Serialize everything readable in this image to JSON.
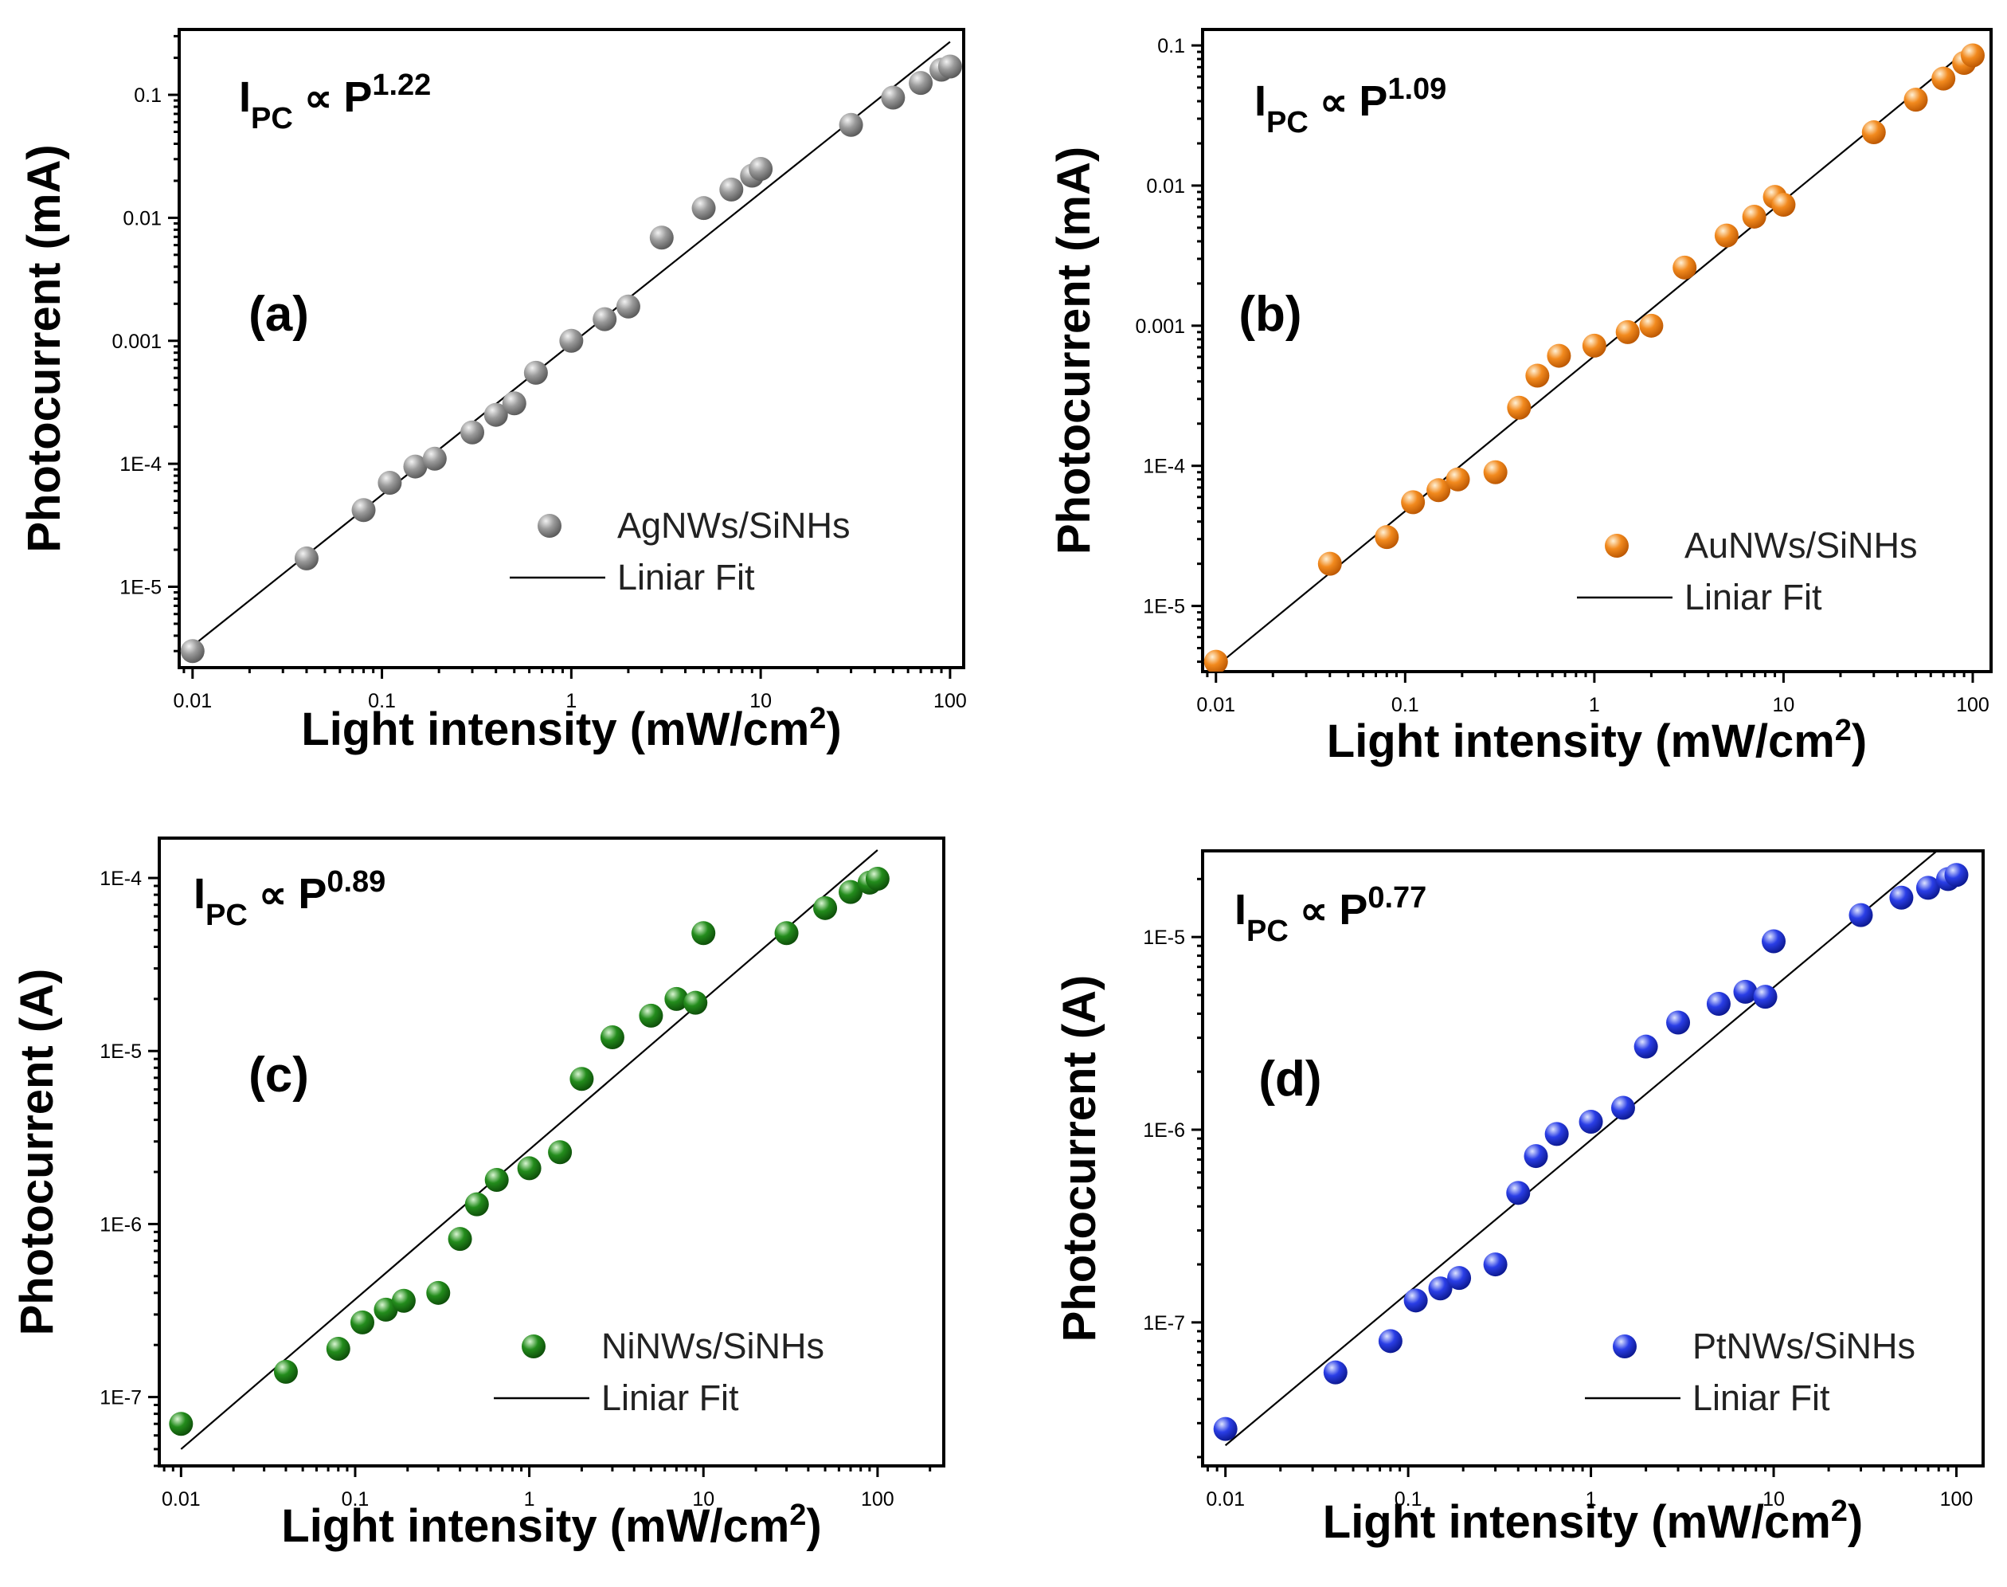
{
  "colors": {
    "ag": "#8c8c8c",
    "au": "#f07f15",
    "ni": "#1a7a14",
    "pt": "#1c2fd8",
    "fit_line": "#000000"
  },
  "chart_data": [
    {
      "type": "scatter",
      "panel_label": "(a)",
      "equation": {
        "base": "I",
        "sub": "PC",
        "relation": "∝",
        "var": "P",
        "exponent": "1.22"
      },
      "xlabel": "Light intensity (mW/cm",
      "xlabel_sup": "2",
      "xlabel_close": ")",
      "ylabel": "Photocurrent (mA)",
      "x_scale": "log",
      "y_scale": "log",
      "xlim": [
        0.0085,
        118
      ],
      "ylim": [
        2.2e-06,
        0.34
      ],
      "x_ticks": [
        0.01,
        0.1,
        1,
        10,
        100
      ],
      "x_tick_labels": [
        "0.01",
        "0.1",
        "1",
        "10",
        "100"
      ],
      "y_ticks": [
        1e-05,
        0.0001,
        0.001,
        0.01,
        0.1
      ],
      "y_tick_labels": [
        "1E-5",
        "1E-4",
        "0.001",
        "0.01",
        "0.1"
      ],
      "legend_position": "bottom-right",
      "series": [
        {
          "name": "AgNWs/SiNHs",
          "color_key": "ag",
          "x": [
            0.01,
            0.04,
            0.08,
            0.11,
            0.15,
            0.19,
            0.3,
            0.4,
            0.5,
            0.65,
            1,
            1.5,
            2,
            3,
            5,
            7,
            9,
            10,
            30,
            50,
            70,
            90,
            100
          ],
          "y": [
            3e-06,
            1.7e-05,
            4.2e-05,
            7e-05,
            9.5e-05,
            0.00011,
            0.00018,
            0.00025,
            0.00031,
            0.00055,
            0.001,
            0.0015,
            0.0019,
            0.0069,
            0.012,
            0.017,
            0.022,
            0.025,
            0.057,
            0.095,
            0.125,
            0.16,
            0.17
          ]
        },
        {
          "name": "Liniar Fit",
          "type": "line",
          "x": [
            0.01,
            100
          ],
          "y": [
            3.3e-06,
            0.27
          ]
        }
      ]
    },
    {
      "type": "scatter",
      "panel_label": "(b)",
      "equation": {
        "base": "I",
        "sub": "PC",
        "relation": "∝",
        "var": "P",
        "exponent": "1.09"
      },
      "xlabel": "Light intensity (mW/cm",
      "xlabel_sup": "2",
      "xlabel_close": ")",
      "ylabel": "Photocurrent (mA)",
      "x_scale": "log",
      "y_scale": "log",
      "xlim": [
        0.0085,
        125
      ],
      "ylim": [
        3.4e-06,
        0.13
      ],
      "x_ticks": [
        0.01,
        0.1,
        1,
        10,
        100
      ],
      "x_tick_labels": [
        "0.01",
        "0.1",
        "1",
        "10",
        "100"
      ],
      "y_ticks": [
        1e-05,
        0.0001,
        0.001,
        0.01,
        0.1
      ],
      "y_tick_labels": [
        "1E-5",
        "1E-4",
        "0.001",
        "0.01",
        "0.1"
      ],
      "legend_position": "bottom-right",
      "series": [
        {
          "name": "AuNWs/SiNHs",
          "color_key": "au",
          "x": [
            0.01,
            0.04,
            0.08,
            0.11,
            0.15,
            0.19,
            0.3,
            0.4,
            0.5,
            0.65,
            1,
            1.5,
            2,
            3,
            5,
            7,
            9,
            10,
            30,
            50,
            70,
            90,
            100
          ],
          "y": [
            4e-06,
            2e-05,
            3.1e-05,
            5.5e-05,
            6.7e-05,
            8e-05,
            9e-05,
            0.00026,
            0.00044,
            0.00061,
            0.00072,
            0.0009,
            0.001,
            0.0026,
            0.0044,
            0.006,
            0.0083,
            0.0073,
            0.024,
            0.041,
            0.058,
            0.075,
            0.085
          ]
        },
        {
          "name": "Liniar Fit",
          "type": "line",
          "x": [
            0.01,
            100
          ],
          "y": [
            3.7e-06,
            0.1
          ]
        }
      ]
    },
    {
      "type": "scatter",
      "panel_label": "(c)",
      "equation": {
        "base": "I",
        "sub": "PC",
        "relation": "∝",
        "var": "P",
        "exponent": "0.89"
      },
      "xlabel": "Light intensity (mW/cm",
      "xlabel_sup": "2",
      "xlabel_close": ")",
      "ylabel": "Photocurrent (A)",
      "x_scale": "log",
      "y_scale": "log",
      "xlim": [
        0.0075,
        240
      ],
      "ylim": [
        4e-08,
        0.00017
      ],
      "x_ticks": [
        0.01,
        0.1,
        1,
        10,
        100
      ],
      "x_tick_labels": [
        "0.01",
        "0.1",
        "1",
        "10",
        "100"
      ],
      "y_ticks": [
        1e-07,
        1e-06,
        1e-05,
        0.0001
      ],
      "y_tick_labels": [
        "1E-7",
        "1E-6",
        "1E-5",
        "1E-4"
      ],
      "legend_position": "bottom-right",
      "series": [
        {
          "name": "NiNWs/SiNHs",
          "color_key": "ni",
          "x": [
            0.01,
            0.04,
            0.08,
            0.11,
            0.15,
            0.19,
            0.3,
            0.4,
            0.5,
            0.65,
            1,
            1.5,
            2,
            3,
            5,
            7,
            9,
            10,
            30,
            50,
            70,
            90,
            100
          ],
          "y": [
            7e-08,
            1.4e-07,
            1.9e-07,
            2.7e-07,
            3.2e-07,
            3.6e-07,
            4e-07,
            8.2e-07,
            1.3e-06,
            1.8e-06,
            2.1e-06,
            2.6e-06,
            6.9e-06,
            1.2e-05,
            1.6e-05,
            2e-05,
            1.9e-05,
            4.8e-05,
            4.8e-05,
            6.7e-05,
            8.3e-05,
            9.4e-05,
            9.9e-05
          ]
        },
        {
          "name": "Liniar Fit",
          "type": "line",
          "x": [
            0.01,
            100
          ],
          "y": [
            5e-08,
            0.000145
          ]
        }
      ]
    },
    {
      "type": "scatter",
      "panel_label": "(d)",
      "equation": {
        "base": "I",
        "sub": "PC",
        "relation": "∝",
        "var": "P",
        "exponent": "0.77"
      },
      "xlabel": "Light intensity (mW/cm",
      "xlabel_sup": "2",
      "xlabel_close": ")",
      "ylabel": "Photocurrent (A)",
      "x_scale": "log",
      "y_scale": "log",
      "xlim": [
        0.0075,
        140
      ],
      "ylim": [
        1.8e-08,
        2.8e-05
      ],
      "x_ticks": [
        0.01,
        0.1,
        1,
        10,
        100
      ],
      "x_tick_labels": [
        "0.01",
        "0.1",
        "1",
        "10",
        "100"
      ],
      "y_ticks": [
        1e-07,
        1e-06,
        1e-05
      ],
      "y_tick_labels": [
        "1E-7",
        "1E-6",
        "1E-5"
      ],
      "legend_position": "bottom-right",
      "series": [
        {
          "name": "PtNWs/SiNHs",
          "color_key": "pt",
          "x": [
            0.01,
            0.04,
            0.08,
            0.11,
            0.15,
            0.19,
            0.3,
            0.4,
            0.5,
            0.65,
            1,
            1.5,
            2,
            3,
            5,
            7,
            9,
            10,
            30,
            50,
            70,
            90,
            100
          ],
          "y": [
            2.8e-08,
            5.5e-08,
            8e-08,
            1.3e-07,
            1.5e-07,
            1.7e-07,
            2e-07,
            4.7e-07,
            7.3e-07,
            9.5e-07,
            1.1e-06,
            1.3e-06,
            2.7e-06,
            3.6e-06,
            4.5e-06,
            5.2e-06,
            4.9e-06,
            9.5e-06,
            1.3e-05,
            1.6e-05,
            1.8e-05,
            2e-05,
            2.1e-05
          ]
        },
        {
          "name": "Liniar Fit",
          "type": "line",
          "x": [
            0.01,
            100
          ],
          "y": [
            2.3e-08,
            3.4e-05
          ]
        }
      ]
    }
  ]
}
